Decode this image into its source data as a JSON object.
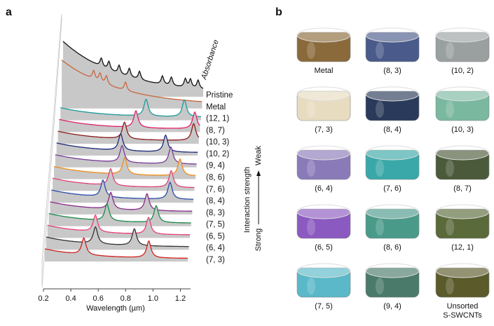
{
  "panel_a": {
    "label": "a",
    "y_axis_label": "Absorbance",
    "x_axis_label": "Wavelength (µm)",
    "xlim": [
      0.2,
      1.3
    ],
    "xticks": [
      0.2,
      0.4,
      0.6,
      0.8,
      {
        "value": 1,
        "label": "1.0"
      },
      1.2
    ],
    "interaction_label": "Interaction strength",
    "weak_label": "Weak",
    "strong_label": "Strong",
    "spectra": [
      {
        "name": "Pristine",
        "color": "#111111",
        "peaks": [
          0.5,
          0.56,
          0.64,
          0.72,
          0.8,
          0.98,
          1.05,
          1.16,
          1.2,
          1.26
        ]
      },
      {
        "name": "Metal",
        "color": "#c8643c",
        "peaks": [
          0.45,
          0.5,
          0.55,
          0.7
        ]
      },
      {
        "name": "(12, 1)",
        "color": "#1a9a9a",
        "peaks": [
          0.87,
          1.17
        ]
      },
      {
        "name": "(8, 7)",
        "color": "#e0206a",
        "peaks": [
          0.8,
          1.26
        ]
      },
      {
        "name": "(10, 3)",
        "color": "#8b1a1a",
        "peaks": [
          0.72,
          1.26
        ]
      },
      {
        "name": "(10, 2)",
        "color": "#1c2a7a",
        "peaks": [
          0.7,
          1.05
        ]
      },
      {
        "name": "(9, 4)",
        "color": "#7a3a9a",
        "peaks": [
          0.72,
          1.1
        ]
      },
      {
        "name": "(8, 6)",
        "color": "#f08c1a",
        "peaks": [
          0.75,
          1.18
        ]
      },
      {
        "name": "(7, 6)",
        "color": "#e0407a",
        "peaks": [
          0.65,
          1.12
        ]
      },
      {
        "name": "(8, 4)",
        "color": "#2a4aaa",
        "peaks": [
          0.6,
          1.12
        ]
      },
      {
        "name": "(8, 3)",
        "color": "#8a2a8a",
        "peaks": [
          0.67,
          0.95
        ]
      },
      {
        "name": "(7, 5)",
        "color": "#1a8a4a",
        "peaks": [
          0.65,
          1.03
        ]
      },
      {
        "name": "(6, 5)",
        "color": "#e8407a",
        "peaks": [
          0.57,
          0.98
        ]
      },
      {
        "name": "(6, 4)",
        "color": "#333333",
        "peaks": [
          0.58,
          0.88
        ]
      },
      {
        "name": "(7, 3)",
        "color": "#d02020",
        "peaks": [
          0.5,
          1.0
        ]
      }
    ]
  },
  "panel_b": {
    "label": "b",
    "vials": [
      {
        "label": "Metal",
        "color": "#8a6a3a"
      },
      {
        "label": "(8, 3)",
        "color": "#4a5a8a"
      },
      {
        "label": "(10, 2)",
        "color": "#9aa0a0"
      },
      {
        "label": "(7, 3)",
        "color": "#e8dcc0"
      },
      {
        "label": "(8, 4)",
        "color": "#2a3a5a"
      },
      {
        "label": "(10, 3)",
        "color": "#7ab8a0"
      },
      {
        "label": "(6, 4)",
        "color": "#8a7ab8"
      },
      {
        "label": "(7, 6)",
        "color": "#3aa8a8"
      },
      {
        "label": "(8, 7)",
        "color": "#4a5a3a"
      },
      {
        "label": "(6, 5)",
        "color": "#8a5ac0"
      },
      {
        "label": "(8, 6)",
        "color": "#4a9a8a"
      },
      {
        "label": "(12, 1)",
        "color": "#5a6a3a"
      },
      {
        "label": "(7, 5)",
        "color": "#5ab8c8"
      },
      {
        "label": "(9, 4)",
        "color": "#4a7a6a"
      },
      {
        "label": "Unsorted S-SWCNTs",
        "color": "#5a5a2a"
      }
    ]
  }
}
